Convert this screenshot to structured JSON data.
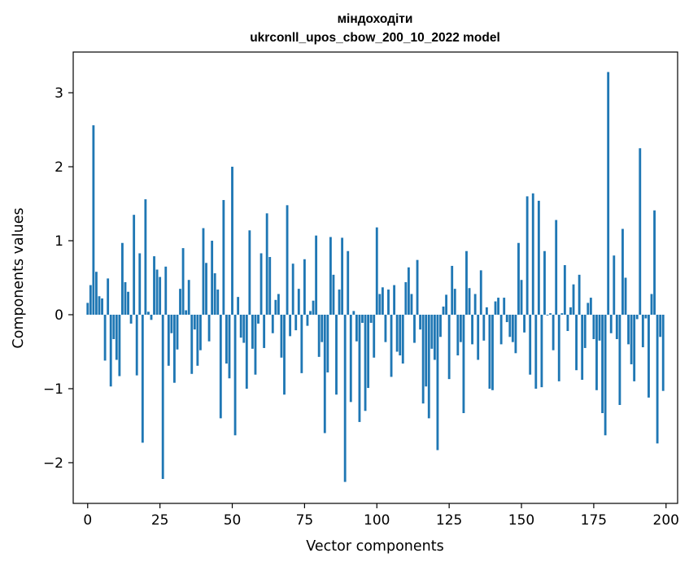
{
  "chart_data": {
    "type": "bar",
    "title": "міндоходіти",
    "subtitle": "ukrconll_upos_cbow_200_10_2022 model",
    "xlabel": "Vector components",
    "ylabel": "Components values",
    "xlim": [
      -5,
      204
    ],
    "ylim": [
      -2.55,
      3.55
    ],
    "xticks": [
      0,
      25,
      50,
      75,
      100,
      125,
      150,
      175,
      200
    ],
    "yticks": [
      -2,
      -1,
      0,
      1,
      2,
      3
    ],
    "ytick_labels": [
      "−2",
      "−1",
      "0",
      "1",
      "2",
      "3"
    ],
    "grid": false,
    "legend": "none",
    "bar_color": "#1f77b4",
    "x": [
      0,
      1,
      2,
      3,
      4,
      5,
      6,
      7,
      8,
      9,
      10,
      11,
      12,
      13,
      14,
      15,
      16,
      17,
      18,
      19,
      20,
      21,
      22,
      23,
      24,
      25,
      26,
      27,
      28,
      29,
      30,
      31,
      32,
      33,
      34,
      35,
      36,
      37,
      38,
      39,
      40,
      41,
      42,
      43,
      44,
      45,
      46,
      47,
      48,
      49,
      50,
      51,
      52,
      53,
      54,
      55,
      56,
      57,
      58,
      59,
      60,
      61,
      62,
      63,
      64,
      65,
      66,
      67,
      68,
      69,
      70,
      71,
      72,
      73,
      74,
      75,
      76,
      77,
      78,
      79,
      80,
      81,
      82,
      83,
      84,
      85,
      86,
      87,
      88,
      89,
      90,
      91,
      92,
      93,
      94,
      95,
      96,
      97,
      98,
      99,
      100,
      101,
      102,
      103,
      104,
      105,
      106,
      107,
      108,
      109,
      110,
      111,
      112,
      113,
      114,
      115,
      116,
      117,
      118,
      119,
      120,
      121,
      122,
      123,
      124,
      125,
      126,
      127,
      128,
      129,
      130,
      131,
      132,
      133,
      134,
      135,
      136,
      137,
      138,
      139,
      140,
      141,
      142,
      143,
      144,
      145,
      146,
      147,
      148,
      149,
      150,
      151,
      152,
      153,
      154,
      155,
      156,
      157,
      158,
      159,
      160,
      161,
      162,
      163,
      164,
      165,
      166,
      167,
      168,
      169,
      170,
      171,
      172,
      173,
      174,
      175,
      176,
      177,
      178,
      179,
      180,
      181,
      182,
      183,
      184,
      185,
      186,
      187,
      188,
      189,
      190,
      191,
      192,
      193,
      194,
      195,
      196,
      197,
      198,
      199
    ],
    "values": [
      0.16,
      0.4,
      2.56,
      0.58,
      0.25,
      0.22,
      -0.62,
      0.49,
      -0.97,
      -0.33,
      -0.61,
      -0.83,
      0.97,
      0.44,
      0.31,
      -0.12,
      1.35,
      -0.82,
      0.83,
      -1.73,
      1.56,
      0.04,
      -0.07,
      0.79,
      0.61,
      0.51,
      -2.22,
      0.65,
      -0.69,
      -0.25,
      -0.92,
      -0.47,
      0.35,
      0.9,
      0.06,
      0.47,
      -0.8,
      -0.2,
      -0.69,
      -0.48,
      1.17,
      0.7,
      -0.36,
      1.0,
      0.56,
      0.34,
      -1.4,
      1.55,
      -0.66,
      -0.86,
      2.0,
      -1.63,
      0.24,
      -0.31,
      -0.38,
      -1.0,
      1.14,
      -0.46,
      -0.81,
      -0.12,
      0.83,
      -0.45,
      1.37,
      0.78,
      -0.25,
      0.2,
      0.28,
      -0.58,
      -1.08,
      1.48,
      -0.29,
      0.69,
      -0.21,
      0.35,
      -0.79,
      0.75,
      -0.15,
      0.05,
      0.19,
      1.07,
      -0.57,
      -0.37,
      -1.6,
      -0.78,
      1.05,
      0.54,
      -1.08,
      0.34,
      1.04,
      -2.26,
      0.86,
      -1.18,
      0.05,
      -0.36,
      -1.45,
      -0.11,
      -1.3,
      -0.99,
      -0.11,
      -0.58,
      1.18,
      0.28,
      0.37,
      -0.37,
      0.34,
      -0.84,
      0.4,
      -0.5,
      -0.55,
      -0.66,
      0.44,
      0.64,
      0.28,
      -0.38,
      0.74,
      -0.2,
      -1.2,
      -0.97,
      -1.4,
      -0.46,
      -0.61,
      -1.83,
      -0.3,
      0.11,
      0.27,
      -0.87,
      0.66,
      0.35,
      -0.55,
      -0.37,
      -1.33,
      0.86,
      0.36,
      -0.4,
      0.28,
      -0.61,
      0.6,
      -0.35,
      0.1,
      -1.0,
      -1.02,
      0.18,
      0.23,
      -0.4,
      0.23,
      -0.1,
      -0.3,
      -0.37,
      -0.52,
      0.97,
      0.47,
      -0.24,
      1.6,
      -0.81,
      1.64,
      -1.0,
      1.54,
      -0.98,
      0.86,
      -0.01,
      0.02,
      -0.48,
      1.28,
      -0.9,
      0.02,
      0.67,
      -0.22,
      0.1,
      0.41,
      -0.75,
      0.54,
      -0.88,
      -0.45,
      0.16,
      0.23,
      -0.33,
      -1.02,
      -0.35,
      -1.33,
      -1.63,
      3.28,
      -0.25,
      0.8,
      -0.33,
      -1.22,
      1.16,
      0.5,
      -0.4,
      -0.67,
      -0.9,
      -0.06,
      2.25,
      -0.44,
      -0.05,
      -1.12,
      0.28,
      1.41,
      -1.74,
      -0.3,
      -1.03
    ]
  }
}
